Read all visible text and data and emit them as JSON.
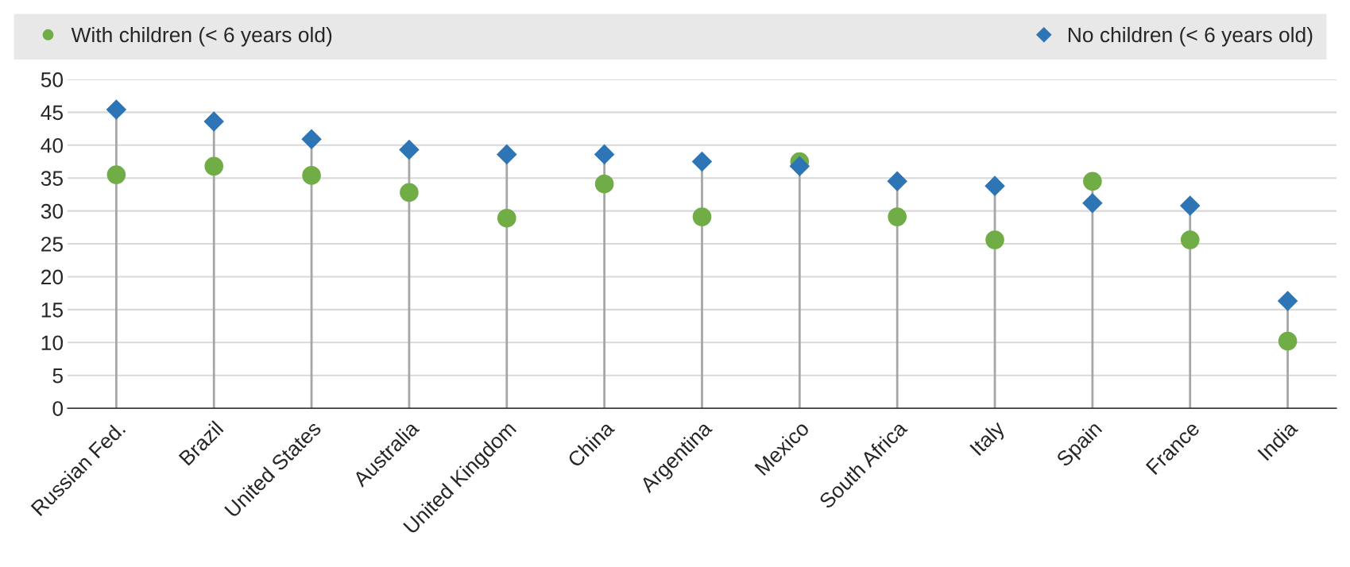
{
  "chart_data": {
    "type": "lollipop",
    "categories": [
      "Russian Fed.",
      "Brazil",
      "United States",
      "Australia",
      "United Kingdom",
      "China",
      "Argentina",
      "Mexico",
      "South Africa",
      "Italy",
      "Spain",
      "France",
      "India"
    ],
    "series": [
      {
        "name": "With children (< 6 years old)",
        "color": "#70ad47",
        "marker": "circle",
        "values": [
          35.5,
          36.8,
          35.4,
          32.8,
          28.9,
          34.1,
          29.1,
          37.5,
          29.1,
          25.6,
          34.5,
          25.6,
          10.2
        ]
      },
      {
        "name": "No children (< 6 years old)",
        "color": "#2e75b6",
        "marker": "diamond",
        "values": [
          45.4,
          43.6,
          40.9,
          39.3,
          38.6,
          38.6,
          37.5,
          36.8,
          34.5,
          33.8,
          31.2,
          30.8,
          16.3
        ]
      }
    ],
    "ylim": [
      0,
      50
    ],
    "yticks": [
      0,
      5,
      10,
      15,
      20,
      25,
      30,
      35,
      40,
      45,
      50
    ],
    "grid": "y",
    "legend": "top"
  }
}
